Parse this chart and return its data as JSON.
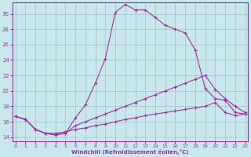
{
  "xlabel": "Windchill (Refroidissement éolien,°C)",
  "bg_color": "#c8e8ee",
  "line_color": "#993399",
  "grid_color": "#a0c0cc",
  "ylim": [
    13.5,
    31.5
  ],
  "xlim": [
    -0.3,
    23.3
  ],
  "yticks": [
    14,
    16,
    18,
    20,
    22,
    24,
    26,
    28,
    30
  ],
  "xticks": [
    0,
    1,
    2,
    3,
    4,
    5,
    6,
    7,
    8,
    9,
    10,
    11,
    12,
    13,
    14,
    15,
    16,
    17,
    18,
    19,
    20,
    21,
    22,
    23
  ],
  "curve1_x": [
    0,
    1,
    2,
    3,
    4,
    5,
    6,
    7,
    8,
    9,
    10,
    11,
    12,
    13,
    14,
    15,
    16,
    17,
    18,
    19,
    20,
    21,
    22,
    23
  ],
  "curve1_y": [
    16.7,
    16.3,
    15.0,
    14.5,
    14.3,
    14.5,
    16.5,
    18.2,
    21.0,
    24.2,
    30.2,
    31.2,
    30.5,
    30.5,
    29.5,
    28.5,
    28.0,
    27.5,
    25.3,
    20.3,
    19.0,
    18.8,
    17.2,
    17.0
  ],
  "curve2_x": [
    0,
    1,
    2,
    3,
    4,
    5,
    6,
    7,
    8,
    9,
    10,
    11,
    12,
    13,
    14,
    15,
    16,
    17,
    18,
    19,
    20,
    21,
    22,
    23
  ],
  "curve2_y": [
    16.7,
    16.3,
    15.0,
    14.5,
    14.3,
    14.5,
    15.5,
    16.0,
    16.5,
    17.0,
    17.5,
    18.0,
    18.5,
    19.0,
    19.5,
    20.0,
    20.5,
    21.0,
    21.5,
    22.0,
    20.2,
    19.0,
    18.0,
    17.2
  ],
  "curve3_x": [
    0,
    1,
    2,
    3,
    4,
    5,
    6,
    7,
    8,
    9,
    10,
    11,
    12,
    13,
    14,
    15,
    16,
    17,
    18,
    19,
    20,
    21,
    22,
    23
  ],
  "curve3_y": [
    16.7,
    16.3,
    15.0,
    14.5,
    14.5,
    14.7,
    15.0,
    15.2,
    15.5,
    15.7,
    16.0,
    16.3,
    16.5,
    16.8,
    17.0,
    17.2,
    17.4,
    17.6,
    17.8,
    18.0,
    18.5,
    17.2,
    16.8,
    17.0
  ]
}
